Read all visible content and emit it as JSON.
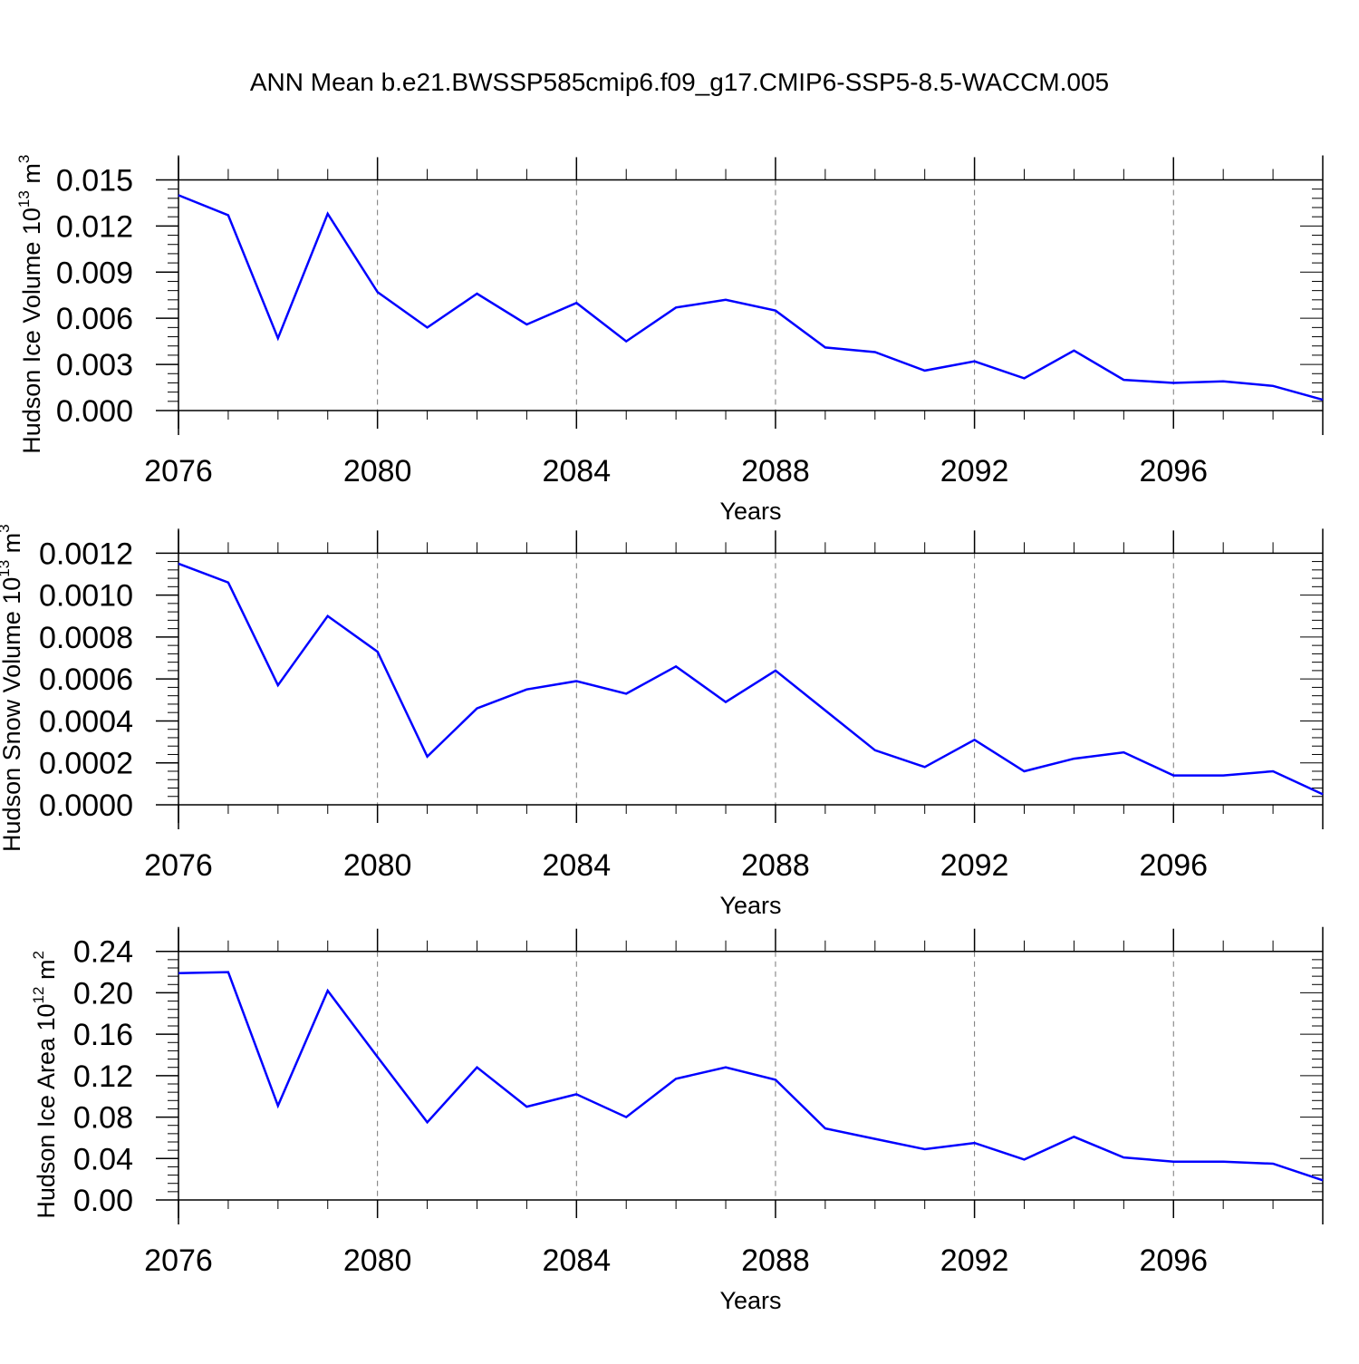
{
  "chart_data": {
    "title": "ANN Mean b.e21.BWSSP585cmip6.f09_g17.CMIP6-SSP5-8.5-WACCM.005",
    "type": "line",
    "line_color": "#0000ff",
    "panels": [
      {
        "type": "line",
        "ylabel": {
          "text": "Hudson Ice Volume 10",
          "sup": "13",
          "unit": " m",
          "unit_sup": "3"
        },
        "xlabel": "Years",
        "xlim": [
          2076,
          2099
        ],
        "ylim": [
          0,
          0.0165
        ],
        "yticks": [
          0.0,
          0.003,
          0.006,
          0.009,
          0.012,
          0.015
        ],
        "ytick_labels": [
          "0.000",
          "0.003",
          "0.006",
          "0.009",
          "0.012",
          "0.015"
        ],
        "x": [
          2076,
          2077,
          2078,
          2079,
          2080,
          2081,
          2082,
          2083,
          2084,
          2085,
          2086,
          2087,
          2088,
          2089,
          2090,
          2091,
          2092,
          2093,
          2094,
          2095,
          2096,
          2097,
          2098,
          2099
        ],
        "values": [
          0.014,
          0.0127,
          0.0047,
          0.0128,
          0.0077,
          0.0054,
          0.0076,
          0.0056,
          0.007,
          0.0045,
          0.0067,
          0.0072,
          0.0065,
          0.0041,
          0.0038,
          0.0026,
          0.0032,
          0.0021,
          0.0039,
          0.002,
          0.0018,
          0.0019,
          0.0016,
          0.0007
        ]
      },
      {
        "type": "line",
        "ylabel": {
          "text": "Hudson Snow Volume 10",
          "sup": "13",
          "unit": " m",
          "unit_sup": "3"
        },
        "xlabel": "Years",
        "xlim": [
          2076,
          2099
        ],
        "ylim": [
          0,
          0.00121
        ],
        "yticks": [
          0.0,
          0.0002,
          0.0004,
          0.0006,
          0.0008,
          0.001,
          0.0012
        ],
        "ytick_labels": [
          "0.0000",
          "0.0002",
          "0.0004",
          "0.0006",
          "0.0008",
          "0.0010",
          "0.0012"
        ],
        "x": [
          2076,
          2077,
          2078,
          2079,
          2080,
          2081,
          2082,
          2083,
          2084,
          2085,
          2086,
          2087,
          2088,
          2089,
          2090,
          2091,
          2092,
          2093,
          2094,
          2095,
          2096,
          2097,
          2098,
          2099
        ],
        "values": [
          0.00115,
          0.00106,
          0.00057,
          0.0009,
          0.00073,
          0.00023,
          0.00046,
          0.00055,
          0.00059,
          0.00053,
          0.00066,
          0.00049,
          0.00064,
          0.00045,
          0.00026,
          0.00018,
          0.00031,
          0.00016,
          0.00022,
          0.00025,
          0.00014,
          0.00014,
          0.00016,
          5e-05
        ]
      },
      {
        "type": "line",
        "ylabel": {
          "text": "Hudson Ice Area 10",
          "sup": "12",
          "unit": " m",
          "unit_sup": "2"
        },
        "xlabel": "Years",
        "xlim": [
          2076,
          2099
        ],
        "ylim": [
          0,
          0.245
        ],
        "yticks": [
          0.0,
          0.04,
          0.08,
          0.12,
          0.16,
          0.2,
          0.24
        ],
        "ytick_labels": [
          "0.00",
          "0.04",
          "0.08",
          "0.12",
          "0.16",
          "0.20",
          "0.24"
        ],
        "x": [
          2076,
          2077,
          2078,
          2079,
          2080,
          2081,
          2082,
          2083,
          2084,
          2085,
          2086,
          2087,
          2088,
          2089,
          2090,
          2091,
          2092,
          2093,
          2094,
          2095,
          2096,
          2097,
          2098,
          2099
        ],
        "values": [
          0.219,
          0.22,
          0.091,
          0.202,
          0.138,
          0.075,
          0.128,
          0.09,
          0.102,
          0.08,
          0.117,
          0.128,
          0.116,
          0.069,
          0.059,
          0.049,
          0.055,
          0.039,
          0.061,
          0.041,
          0.037,
          0.037,
          0.035,
          0.019
        ]
      }
    ],
    "xticks": [
      2076,
      2080,
      2084,
      2088,
      2092,
      2096
    ],
    "xtick_labels": [
      "2076",
      "2080",
      "2084",
      "2088",
      "2092",
      "2096"
    ],
    "grid": "vertical dashed at major x ticks",
    "legend": "none"
  }
}
